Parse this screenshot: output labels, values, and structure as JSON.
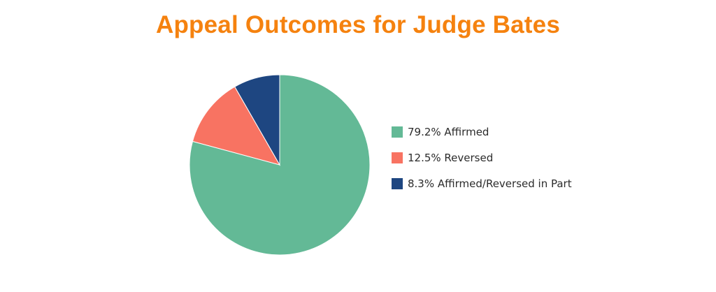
{
  "chart_data": {
    "type": "pie",
    "title": "Appeal Outcomes for Judge Bates",
    "title_color": "#f5820f",
    "legend_position": "right",
    "slices": [
      {
        "label": "79.2% Affirmed",
        "value": 79.2,
        "color": "#63b996"
      },
      {
        "label": "12.5% Reversed",
        "value": 12.5,
        "color": "#f87362"
      },
      {
        "label": "8.3% Affirmed/Reversed in Part",
        "value": 8.3,
        "color": "#1e4681"
      }
    ]
  }
}
